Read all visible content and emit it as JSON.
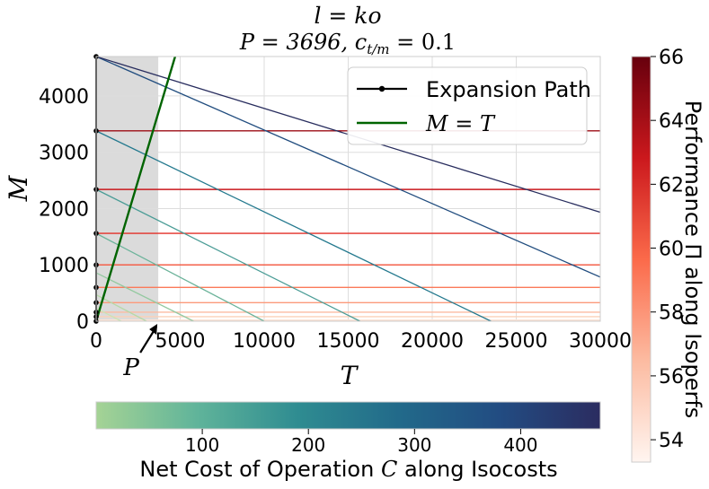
{
  "chart_data": {
    "type": "line",
    "title": "l = ko",
    "subtitle": "P = 3696, c_{t/m} = 0.1",
    "subtitle_parts": {
      "p_label": "P = 3696, ",
      "c_symbol": "c",
      "c_sub": "t/m",
      "c_value": " = 0.1"
    },
    "xlabel": "T",
    "ylabel": "M",
    "xlim": [
      0,
      30000
    ],
    "ylim": [
      0,
      4700
    ],
    "grid": true,
    "x_ticks": [
      0,
      5000,
      10000,
      15000,
      20000,
      25000,
      30000
    ],
    "x_tick_labels": [
      "0",
      "5000",
      "10000",
      "15000",
      "20000",
      "25000",
      "30000"
    ],
    "y_ticks": [
      0,
      1000,
      2000,
      3000,
      4000
    ],
    "y_tick_labels": [
      "0",
      "1000",
      "2000",
      "3000",
      "4000"
    ],
    "shaded_region": {
      "x_from": 0,
      "x_to": 3696,
      "color": "#d9d9d9"
    },
    "p_annotation": {
      "label": "P",
      "x": 3696
    },
    "legend": {
      "position": "top-right",
      "entries": [
        {
          "label": "Expansion Path",
          "color": "#000000",
          "marker": "dot"
        },
        {
          "label": "M = T",
          "color": "#006400",
          "marker": "none"
        }
      ]
    },
    "identity_line": {
      "color": "#006400",
      "slope": 1
    },
    "isoperfs": [
      {
        "m": 20,
        "color": "#fde4d6"
      },
      {
        "m": 80,
        "color": "#fcd0b8"
      },
      {
        "m": 160,
        "color": "#fcbba1"
      },
      {
        "m": 330,
        "color": "#fc9a7b"
      },
      {
        "m": 600,
        "color": "#fb7a5a"
      },
      {
        "m": 1000,
        "color": "#f5553c"
      },
      {
        "m": 1560,
        "color": "#e32f27"
      },
      {
        "m": 2340,
        "color": "#c9181d"
      },
      {
        "m": 3380,
        "color": "#9c0d14"
      }
    ],
    "isocosts": [
      {
        "x_int": 1500,
        "y_int": 230,
        "color": "#cbe3b5"
      },
      {
        "x_int": 3000,
        "y_int": 470,
        "color": "#b6d9a8"
      },
      {
        "x_int": 5800,
        "y_int": 860,
        "color": "#94c9a0"
      },
      {
        "x_int": 10000,
        "y_int": 1560,
        "color": "#6bb39a"
      },
      {
        "x_int": 15700,
        "y_int": 2340,
        "color": "#4a9c96"
      },
      {
        "x_int": 23500,
        "y_int": 3380,
        "color": "#24798e"
      },
      {
        "x_int": 36000,
        "y_int": 4700,
        "color": "#214d7f"
      },
      {
        "x_int": 51000,
        "y_int": 4700,
        "color": "#282d5e"
      }
    ],
    "expansion_points": [
      {
        "t": 0,
        "m": 0
      },
      {
        "t": 0,
        "m": 80
      },
      {
        "t": 0,
        "m": 160
      },
      {
        "t": 0,
        "m": 330
      },
      {
        "t": 0,
        "m": 600
      },
      {
        "t": 0,
        "m": 1000
      },
      {
        "t": 0,
        "m": 1560
      },
      {
        "t": 0,
        "m": 2340
      },
      {
        "t": 0,
        "m": 3380
      },
      {
        "t": 0,
        "m": 4700
      }
    ],
    "colorbar_perf": {
      "label": "Performance Π along Isoperfs",
      "min": 53.3,
      "max": 66,
      "ticks": [
        54,
        56,
        58,
        60,
        62,
        64,
        66
      ],
      "tick_labels": [
        "54",
        "56",
        "58",
        "60",
        "62",
        "64",
        "66"
      ],
      "colors": [
        "#fff5f0",
        "#fcbba1",
        "#fb6a4a",
        "#cb181d",
        "#67000d"
      ]
    },
    "colorbar_cost": {
      "label_prefix": "Net Cost of Operation ",
      "label_symbol": "C",
      "label_suffix": " along Isocosts",
      "min": 0,
      "max": 475,
      "ticks": [
        100,
        200,
        300,
        400
      ],
      "tick_labels": [
        "100",
        "200",
        "300",
        "400"
      ],
      "colors": [
        "#a5d395",
        "#60b49a",
        "#2f8c91",
        "#226a8a",
        "#224c82",
        "#2b2c60"
      ]
    }
  }
}
